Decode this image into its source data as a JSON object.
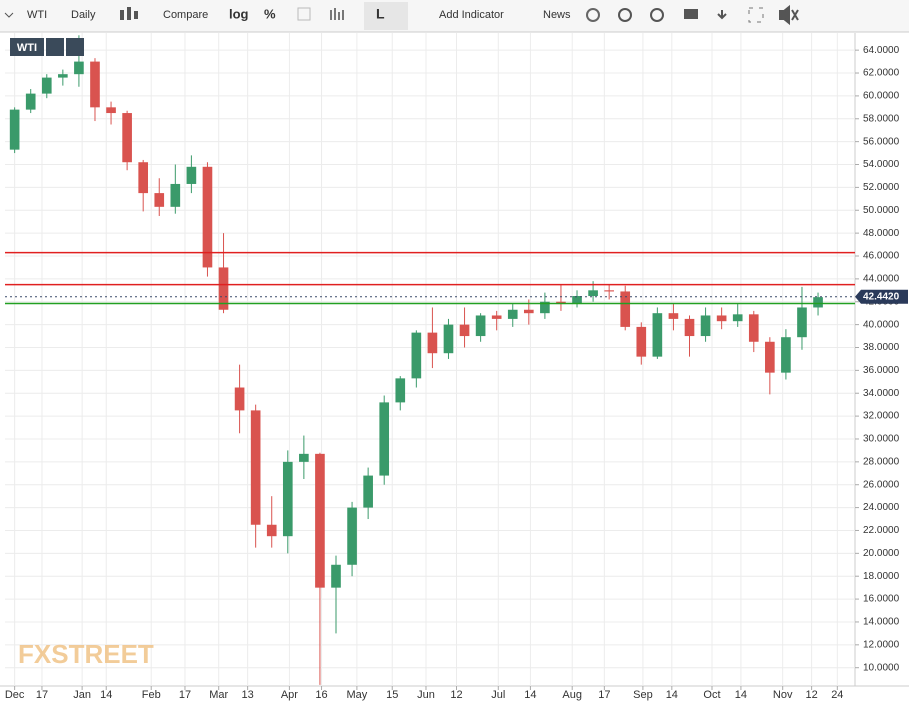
{
  "toolbar": {
    "items": [
      "WTI",
      "Daily",
      "Compare",
      "log",
      "%",
      "L",
      "Add Indicator",
      "News"
    ]
  },
  "chart_data": {
    "type": "candlestick",
    "symbol": "WTI",
    "watermark": "FXSTREET",
    "up_color": "#3a9a6a",
    "down_color": "#d9534f",
    "x": [
      0,
      1,
      2,
      3,
      4,
      5,
      6,
      7,
      8,
      9,
      10,
      11,
      12,
      13,
      14,
      15,
      16,
      17,
      18,
      19,
      20,
      21,
      22,
      23,
      24,
      25,
      26,
      27,
      28,
      29,
      30,
      31,
      32,
      33,
      34,
      35,
      36,
      37,
      38,
      39,
      40,
      41,
      42,
      43,
      44,
      45,
      46,
      47,
      48,
      49,
      50
    ],
    "open": [
      55.3,
      58.8,
      60.2,
      61.6,
      61.9,
      63.0,
      59.0,
      58.5,
      54.2,
      51.5,
      50.3,
      52.3,
      53.8,
      45.0,
      34.5,
      32.5,
      22.5,
      21.5,
      28.0,
      28.7,
      17.0,
      19.0,
      24.0,
      26.8,
      33.2,
      35.3,
      39.3,
      37.5,
      40.0,
      39.0,
      40.8,
      40.5,
      41.3,
      41.0,
      42.0,
      41.8,
      42.5,
      43.0,
      42.9,
      39.8,
      37.2,
      41.0,
      40.5,
      39.0,
      40.8,
      40.3,
      40.9,
      38.5,
      35.8,
      38.9,
      41.5
    ],
    "high": [
      59.0,
      60.6,
      61.9,
      62.3,
      65.3,
      63.3,
      59.5,
      58.7,
      54.4,
      52.8,
      54.0,
      54.8,
      54.2,
      48.0,
      36.5,
      33.0,
      25.0,
      29.0,
      30.3,
      28.8,
      19.8,
      24.5,
      27.5,
      33.8,
      35.5,
      39.5,
      41.5,
      40.5,
      41.5,
      41.0,
      41.2,
      41.8,
      42.2,
      42.8,
      43.5,
      43.0,
      43.8,
      43.5,
      43.4,
      40.2,
      41.5,
      41.8,
      40.8,
      41.5,
      41.5,
      41.8,
      41.2,
      38.9,
      39.6,
      43.3,
      42.8
    ],
    "low": [
      55.0,
      58.5,
      59.8,
      60.9,
      60.8,
      57.8,
      57.5,
      53.5,
      49.9,
      49.5,
      49.7,
      51.5,
      44.2,
      41.0,
      30.5,
      20.5,
      20.5,
      20.0,
      26.5,
      8.5,
      13.0,
      18.0,
      23.0,
      26.0,
      32.5,
      34.5,
      36.2,
      37.0,
      38.0,
      38.5,
      39.5,
      39.8,
      40.0,
      40.5,
      41.2,
      41.5,
      42.0,
      42.2,
      39.5,
      36.5,
      37.0,
      39.5,
      37.2,
      38.5,
      39.6,
      39.8,
      37.6,
      33.9,
      35.2,
      37.8,
      40.8
    ],
    "close": [
      58.8,
      60.2,
      61.6,
      61.9,
      63.0,
      59.0,
      58.5,
      54.2,
      51.5,
      50.3,
      52.3,
      53.8,
      45.0,
      41.3,
      32.5,
      22.5,
      21.5,
      28.0,
      28.7,
      17.0,
      19.0,
      24.0,
      26.8,
      33.2,
      35.3,
      39.3,
      37.5,
      40.0,
      39.0,
      40.8,
      40.5,
      41.3,
      41.0,
      42.0,
      41.8,
      42.5,
      43.0,
      42.9,
      39.8,
      37.2,
      41.0,
      40.5,
      39.0,
      40.8,
      40.3,
      40.9,
      38.5,
      35.8,
      38.9,
      41.5,
      42.4
    ],
    "xlim": [
      -0.6,
      52.3
    ],
    "xticks": [
      {
        "value": 0,
        "label": "Dec"
      },
      {
        "value": 1.7,
        "label": "17"
      },
      {
        "value": 4.2,
        "label": "Jan"
      },
      {
        "value": 5.7,
        "label": "14"
      },
      {
        "value": 8.5,
        "label": "Feb"
      },
      {
        "value": 10.6,
        "label": "17"
      },
      {
        "value": 12.7,
        "label": "Mar"
      },
      {
        "value": 14.5,
        "label": "13"
      },
      {
        "value": 17.1,
        "label": "Apr"
      },
      {
        "value": 19.1,
        "label": "16"
      },
      {
        "value": 21.3,
        "label": "May"
      },
      {
        "value": 23.5,
        "label": "15"
      },
      {
        "value": 25.6,
        "label": "Jun"
      },
      {
        "value": 27.5,
        "label": "12"
      },
      {
        "value": 30.1,
        "label": "Jul"
      },
      {
        "value": 32.1,
        "label": "14"
      },
      {
        "value": 34.7,
        "label": "Aug"
      },
      {
        "value": 36.7,
        "label": "17"
      },
      {
        "value": 39.1,
        "label": "Sep"
      },
      {
        "value": 40.9,
        "label": "14"
      },
      {
        "value": 43.4,
        "label": "Oct"
      },
      {
        "value": 45.2,
        "label": "14"
      },
      {
        "value": 47.8,
        "label": "Nov"
      },
      {
        "value": 49.6,
        "label": "12"
      },
      {
        "value": 51.2,
        "label": "24"
      }
    ],
    "ylim": [
      8.4,
      65.5
    ],
    "yticks": [
      {
        "value": 10,
        "label": "10.0000"
      },
      {
        "value": 12,
        "label": "12.0000"
      },
      {
        "value": 14,
        "label": "14.0000"
      },
      {
        "value": 16,
        "label": "16.0000"
      },
      {
        "value": 18,
        "label": "18.0000"
      },
      {
        "value": 20,
        "label": "20.0000"
      },
      {
        "value": 22,
        "label": "22.0000"
      },
      {
        "value": 24,
        "label": "24.0000"
      },
      {
        "value": 26,
        "label": "26.0000"
      },
      {
        "value": 28,
        "label": "28.0000"
      },
      {
        "value": 30,
        "label": "30.0000"
      },
      {
        "value": 32,
        "label": "32.0000"
      },
      {
        "value": 34,
        "label": "34.0000"
      },
      {
        "value": 36,
        "label": "36.0000"
      },
      {
        "value": 38,
        "label": "38.0000"
      },
      {
        "value": 40,
        "label": "40.0000"
      },
      {
        "value": 42,
        "label": "42.0000"
      },
      {
        "value": 44,
        "label": "44.0000"
      },
      {
        "value": 46,
        "label": "46.0000"
      },
      {
        "value": 48,
        "label": "48.0000"
      },
      {
        "value": 50,
        "label": "50.0000"
      },
      {
        "value": 52,
        "label": "52.0000"
      },
      {
        "value": 54,
        "label": "54.0000"
      },
      {
        "value": 56,
        "label": "56.0000"
      },
      {
        "value": 58,
        "label": "58.0000"
      },
      {
        "value": 60,
        "label": "60.0000"
      },
      {
        "value": 62,
        "label": "62.0000"
      },
      {
        "value": 64,
        "label": "64.0000"
      }
    ],
    "grid": true,
    "hlines": [
      {
        "value": 46.3,
        "color": "#e02020"
      },
      {
        "value": 43.5,
        "color": "#e02020"
      },
      {
        "value": 41.85,
        "color": "#22a022"
      }
    ],
    "last_price": {
      "value": 42.442,
      "label": "42.4420"
    }
  }
}
